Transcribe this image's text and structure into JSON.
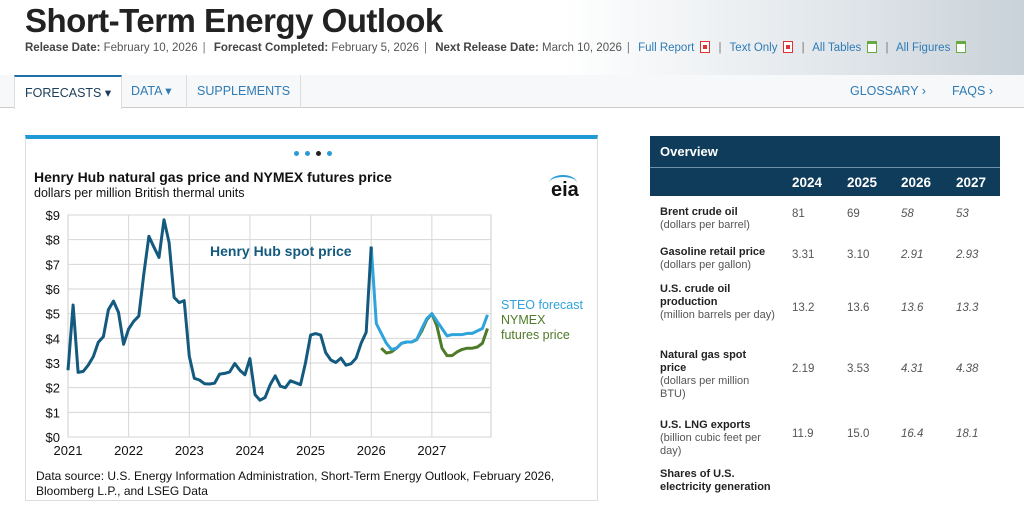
{
  "header": {
    "title": "Short-Term Energy Outlook",
    "release_label": "Release Date:",
    "release_date": "February 10, 2026",
    "completed_label": "Forecast Completed:",
    "completed_date": "February 5, 2026",
    "next_label": "Next Release Date:",
    "next_date": "March 10, 2026",
    "links": [
      "Full Report",
      "Text Only",
      "All Tables",
      "All Figures"
    ]
  },
  "nav": {
    "items": [
      "FORECASTS ▾",
      "DATA ▾",
      "SUPPLEMENTS"
    ],
    "right": [
      "GLOSSARY ›",
      "FAQS ›"
    ]
  },
  "chart_card": {
    "title": "Henry Hub natural gas price and NYMEX futures price",
    "subtitle": "dollars per million  British thermal units",
    "logo": "eia",
    "source": "Data source: U.S. Energy Information Administration, Short-Term Energy Outlook, February 2026, Bloomberg L.P., and LSEG Data",
    "carousel_dots": 4,
    "active_dot": 3
  },
  "chart_data": {
    "type": "line",
    "ylim": [
      0,
      9
    ],
    "xlim": [
      "2021-01",
      "2027-12"
    ],
    "yticks": [
      "$0",
      "$1",
      "$2",
      "$3",
      "$4",
      "$5",
      "$6",
      "$7",
      "$8",
      "$9"
    ],
    "xticks": [
      "2021",
      "2022",
      "2023",
      "2024",
      "2025",
      "2026",
      "2027"
    ],
    "grid": true,
    "annotations": [
      "Henry Hub spot price",
      "STEO forecast",
      "NYMEX futures price"
    ],
    "series": [
      {
        "name": "Henry Hub spot price",
        "color": "#135a7e",
        "start": "2021-01",
        "values": [
          2.71,
          5.35,
          2.62,
          2.66,
          2.91,
          3.26,
          3.84,
          4.07,
          5.16,
          5.51,
          5.05,
          3.76,
          4.38,
          4.69,
          4.9,
          6.6,
          8.14,
          7.7,
          7.28,
          8.81,
          7.88,
          5.66,
          5.45,
          5.53,
          3.27,
          2.38,
          2.31,
          2.16,
          2.15,
          2.18,
          2.55,
          2.58,
          2.64,
          2.98,
          2.71,
          2.52,
          3.18,
          1.72,
          1.49,
          1.6,
          2.12,
          2.48,
          2.06,
          2.0,
          2.28,
          2.2,
          2.12,
          3.01,
          4.13,
          4.19,
          4.13,
          3.42,
          3.12,
          3.02,
          3.2,
          2.91,
          2.97,
          3.2,
          3.8,
          4.25,
          7.72
        ]
      },
      {
        "name": "STEO forecast",
        "color": "#2fa3dc",
        "start": "2026-01",
        "values": [
          7.72,
          4.6,
          4.2,
          3.8,
          3.55,
          3.6,
          3.8,
          3.85,
          3.85,
          3.95,
          4.4,
          4.8,
          5.0,
          4.7,
          4.4,
          4.1,
          4.15,
          4.15,
          4.15,
          4.2,
          4.2,
          4.3,
          4.4,
          4.95
        ]
      },
      {
        "name": "NYMEX futures price",
        "color": "#4f7a28",
        "start": "2026-03",
        "values": [
          3.6,
          3.4,
          3.45,
          3.6,
          3.8,
          3.85,
          3.85,
          3.95,
          4.3,
          4.75,
          5.0,
          4.5,
          3.6,
          3.3,
          3.3,
          3.45,
          3.55,
          3.6,
          3.6,
          3.65,
          3.8,
          4.4
        ]
      }
    ]
  },
  "overview": {
    "title": "Overview",
    "years": [
      "2024",
      "2025",
      "2026",
      "2027"
    ],
    "rows": [
      {
        "label": "Brent crude oil",
        "unit": "(dollars per barrel)",
        "values": [
          "81",
          "69",
          "58",
          "53"
        ]
      },
      {
        "label": "Gasoline retail price",
        "unit": "(dollars per gallon)",
        "values": [
          "3.31",
          "3.10",
          "2.91",
          "2.93"
        ]
      },
      {
        "label": "U.S. crude oil production",
        "unit": "(million barrels per day)",
        "values": [
          "13.2",
          "13.6",
          "13.6",
          "13.3"
        ]
      },
      {
        "label": "Natural gas spot price",
        "unit": "(dollars per million BTU)",
        "values": [
          "2.19",
          "3.53",
          "4.31",
          "4.38"
        ]
      },
      {
        "label": "U.S. LNG exports",
        "unit": "(billion cubic feet per day)",
        "values": [
          "11.9",
          "15.0",
          "16.4",
          "18.1"
        ]
      },
      {
        "label": "Shares of U.S. electricity generation",
        "unit": "",
        "values": [
          "",
          "",
          "",
          ""
        ]
      }
    ]
  },
  "colors": {
    "accent": "#1f9ad6",
    "table_header": "#0e3c5a",
    "link": "#2f7bb5"
  }
}
